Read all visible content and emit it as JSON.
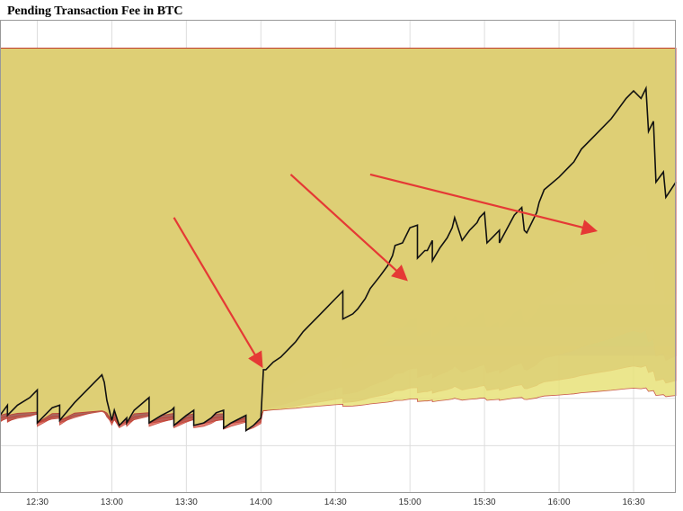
{
  "chart_data": {
    "type": "area",
    "title": "Pending Transaction Fee in BTC",
    "xlabel": "",
    "ylabel": "",
    "x_tick_labels": [
      "12:30",
      "13:00",
      "13:30",
      "14:00",
      "14:30",
      "15:00",
      "15:30",
      "16:00",
      "16:30"
    ],
    "x_range": [
      "12:15",
      "16:47"
    ],
    "grid": true,
    "stacked": true,
    "annotations": [
      {
        "kind": "arrow",
        "from": {
          "x": "13:25",
          "y": 0.84
        },
        "to": {
          "x": "14:00",
          "y": 0.26
        },
        "color": "#e53935"
      },
      {
        "kind": "arrow",
        "from": {
          "x": "14:12",
          "y": 1.01
        },
        "to": {
          "x": "14:58",
          "y": 0.6
        },
        "color": "#e53935"
      },
      {
        "kind": "arrow",
        "from": {
          "x": "14:44",
          "y": 1.01
        },
        "to": {
          "x": "16:14",
          "y": 0.79
        },
        "color": "#e53935"
      }
    ],
    "total": {
      "x": [
        "12:15",
        "12:18",
        "12:18",
        "12:22",
        "12:27",
        "12:30",
        "12:30",
        "12:36",
        "12:39",
        "12:39",
        "12:45",
        "12:51",
        "12:56",
        "12:57",
        "12:58",
        "13:00",
        "13:01",
        "13:03",
        "13:06",
        "13:06",
        "13:09",
        "13:15",
        "13:15",
        "13:20",
        "13:24",
        "13:25",
        "13:25",
        "13:30",
        "13:33",
        "13:33",
        "13:37",
        "13:40",
        "13:42",
        "13:45",
        "13:45",
        "13:48",
        "13:54",
        "13:54",
        "13:57",
        "14:00",
        "14:01",
        "14:02",
        "14:05",
        "14:08",
        "14:11",
        "14:14",
        "14:17",
        "14:20",
        "14:23",
        "14:26",
        "14:30",
        "14:33",
        "14:33",
        "14:37",
        "14:39",
        "14:42",
        "14:44",
        "14:48",
        "14:51",
        "14:53",
        "14:54",
        "14:57",
        "15:00",
        "15:03",
        "15:03",
        "15:06",
        "15:07",
        "15:09",
        "15:09",
        "15:12",
        "15:15",
        "15:17",
        "15:18",
        "15:21",
        "15:24",
        "15:27",
        "15:28",
        "15:30",
        "15:31",
        "15:33",
        "15:36",
        "15:36",
        "15:42",
        "15:45",
        "15:46",
        "15:47",
        "15:51",
        "15:52",
        "15:54",
        "16:00",
        "16:06",
        "16:09",
        "16:15",
        "16:21",
        "16:27",
        "16:30",
        "16:33",
        "16:35",
        "16:36",
        "16:38",
        "16:39",
        "16:42",
        "16:43",
        "16:45",
        "16:47"
      ],
      "y": [
        0.06,
        0.1,
        0.06,
        0.1,
        0.13,
        0.16,
        0.03,
        0.09,
        0.1,
        0.04,
        0.11,
        0.17,
        0.22,
        0.19,
        0.12,
        0.04,
        0.08,
        0.02,
        0.05,
        0.03,
        0.08,
        0.13,
        0.03,
        0.06,
        0.08,
        0.09,
        0.02,
        0.06,
        0.08,
        0.02,
        0.03,
        0.05,
        0.07,
        0.08,
        0.01,
        0.03,
        0.06,
        0.0,
        0.02,
        0.05,
        0.24,
        0.24,
        0.27,
        0.29,
        0.32,
        0.35,
        0.39,
        0.42,
        0.45,
        0.48,
        0.52,
        0.55,
        0.44,
        0.46,
        0.48,
        0.52,
        0.56,
        0.61,
        0.65,
        0.69,
        0.73,
        0.74,
        0.8,
        0.81,
        0.68,
        0.71,
        0.71,
        0.75,
        0.67,
        0.72,
        0.76,
        0.8,
        0.84,
        0.75,
        0.79,
        0.82,
        0.84,
        0.86,
        0.74,
        0.76,
        0.79,
        0.74,
        0.85,
        0.88,
        0.79,
        0.78,
        0.86,
        0.9,
        0.95,
        1.0,
        1.06,
        1.11,
        1.17,
        1.23,
        1.31,
        1.34,
        1.31,
        1.35,
        1.18,
        1.22,
        0.98,
        1.02,
        0.92,
        0.95,
        0.98
      ]
    },
    "bands": [
      {
        "name": "",
        "color": "#5c6bc0",
        "base": 0.29,
        "top": 0.31,
        "points": [
          [
            "12:15",
            0.29
          ],
          [
            "16:47",
            0.31
          ]
        ]
      },
      {
        "name": "",
        "color": "#1e88e5",
        "base": 0.31,
        "top": 0.35,
        "points": [
          [
            "12:15",
            0.31
          ],
          [
            "16:47",
            0.35
          ]
        ]
      },
      {
        "name": "",
        "color": "#3f51b5",
        "base": 0.35,
        "top": 0.4,
        "points": [
          [
            "12:15",
            0.35
          ],
          [
            "16:47",
            0.4
          ]
        ]
      },
      {
        "name": "",
        "color": "#2962ff",
        "base": 0.4,
        "top": 0.4,
        "points": [
          [
            "12:15",
            0.4
          ],
          [
            "16:47",
            0.4
          ]
        ]
      },
      {
        "name": "",
        "color": "#ffffff",
        "base": 0.4,
        "top": 0.53,
        "points": [
          [
            "12:15",
            0.4
          ],
          [
            "16:47",
            0.53
          ]
        ]
      },
      {
        "name": "",
        "color": "#4caf50",
        "base": 0.53,
        "top": 0.62,
        "points": [
          [
            "12:15",
            0.53
          ],
          [
            "16:47",
            0.62
          ]
        ]
      },
      {
        "name": "",
        "color": "#66bb6a",
        "base": 0.62,
        "top": 0.72,
        "points": [
          [
            "12:15",
            0.62
          ],
          [
            "16:47",
            0.72
          ]
        ]
      },
      {
        "name": "",
        "color": "#8bc34a",
        "base": 0.72,
        "top": 0.81,
        "points": [
          [
            "12:15",
            0.72
          ],
          [
            "16:47",
            0.81
          ]
        ]
      },
      {
        "name": "",
        "color": "#9ccc65",
        "base": 0.81,
        "top": 0.88,
        "points": [
          [
            "12:15",
            0.81
          ],
          [
            "16:47",
            0.88
          ]
        ]
      },
      {
        "name": "",
        "color": "#a5d6a7",
        "base": 0.88,
        "top": 0.94,
        "points": [
          [
            "12:15",
            0.88
          ],
          [
            "16:47",
            0.94
          ]
        ]
      }
    ],
    "y_ticks_count": 10
  }
}
